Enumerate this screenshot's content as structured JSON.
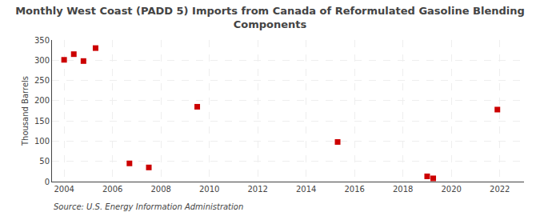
{
  "chart_data": {
    "type": "scatter",
    "title": "Monthly West Coast (PADD 5) Imports from Canada of Reformulated Gasoline Blending\nComponents",
    "ylabel": "Thousand Barrels",
    "source": "Source: U.S. Energy Information Administration",
    "x": [
      2004.0,
      2004.4,
      2004.8,
      2005.3,
      2006.7,
      2007.5,
      2009.5,
      2015.3,
      2019.0,
      2019.25,
      2021.9
    ],
    "values": [
      301,
      315,
      298,
      330,
      45,
      35,
      185,
      98,
      13,
      8,
      178
    ],
    "color": "#cc0000",
    "marker": "square",
    "xlim": [
      2003.5,
      2023.0
    ],
    "ylim": [
      0,
      350
    ],
    "xticks": [
      2004,
      2006,
      2008,
      2010,
      2012,
      2014,
      2016,
      2018,
      2020,
      2022
    ],
    "yticks": [
      0,
      50,
      100,
      150,
      200,
      250,
      300,
      350
    ],
    "grid": true
  }
}
